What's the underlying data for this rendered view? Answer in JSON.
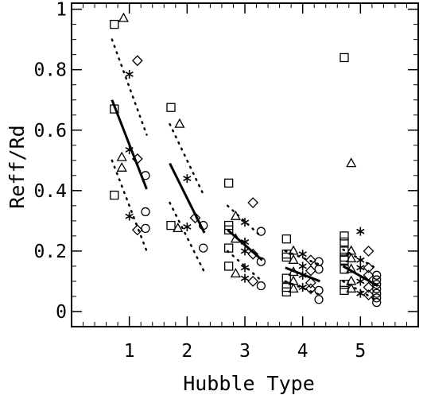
{
  "chart_data": {
    "type": "scatter",
    "title": "",
    "xlabel": "Hubble Type",
    "ylabel": "Reff/Rd",
    "xlim": [
      0,
      6
    ],
    "ylim": [
      -0.05,
      1.02
    ],
    "x_ticks": [
      1,
      2,
      3,
      4,
      5
    ],
    "y_ticks": [
      0,
      0.2,
      0.4,
      0.6,
      0.8,
      1
    ],
    "x_tick_labels": [
      "1",
      "2",
      "3",
      "4",
      "5"
    ],
    "y_tick_labels": [
      "0",
      "0.2",
      "0.4",
      "0.6",
      "0.8",
      "1"
    ],
    "grid": false,
    "legend": null,
    "marker_series": [
      {
        "marker": "square",
        "points": [
          [
            0.74,
            0.95
          ],
          [
            0.74,
            0.67
          ],
          [
            0.74,
            0.385
          ],
          [
            1.72,
            0.675
          ],
          [
            1.72,
            0.285
          ],
          [
            2.72,
            0.425
          ],
          [
            2.72,
            0.285
          ],
          [
            2.72,
            0.27
          ],
          [
            2.72,
            0.21
          ],
          [
            2.72,
            0.15
          ],
          [
            3.72,
            0.24
          ],
          [
            3.72,
            0.19
          ],
          [
            3.72,
            0.18
          ],
          [
            3.72,
            0.11
          ],
          [
            3.72,
            0.08
          ],
          [
            3.72,
            0.065
          ],
          [
            4.72,
            0.84
          ],
          [
            4.72,
            0.25
          ],
          [
            4.72,
            0.23
          ],
          [
            4.72,
            0.2
          ],
          [
            4.72,
            0.18
          ],
          [
            4.72,
            0.17
          ],
          [
            4.72,
            0.14
          ],
          [
            4.72,
            0.09
          ],
          [
            4.72,
            0.07
          ]
        ]
      },
      {
        "marker": "triangle",
        "points": [
          [
            0.9,
            0.97
          ],
          [
            0.87,
            0.51
          ],
          [
            0.87,
            0.475
          ],
          [
            1.87,
            0.62
          ],
          [
            1.84,
            0.275
          ],
          [
            2.84,
            0.315
          ],
          [
            2.84,
            0.24
          ],
          [
            2.84,
            0.125
          ],
          [
            3.84,
            0.2
          ],
          [
            3.84,
            0.17
          ],
          [
            3.84,
            0.13
          ],
          [
            3.84,
            0.1
          ],
          [
            3.84,
            0.075
          ],
          [
            4.84,
            0.49
          ],
          [
            4.84,
            0.2
          ],
          [
            4.84,
            0.175
          ],
          [
            4.84,
            0.14
          ],
          [
            4.84,
            0.1
          ],
          [
            4.84,
            0.075
          ]
        ]
      },
      {
        "marker": "asterisk",
        "points": [
          [
            1.0,
            0.785
          ],
          [
            1.0,
            0.535
          ],
          [
            1.0,
            0.315
          ],
          [
            2.0,
            0.44
          ],
          [
            2.0,
            0.28
          ],
          [
            3.0,
            0.295
          ],
          [
            3.0,
            0.23
          ],
          [
            3.0,
            0.2
          ],
          [
            3.0,
            0.145
          ],
          [
            3.0,
            0.11
          ],
          [
            4.0,
            0.19
          ],
          [
            4.0,
            0.15
          ],
          [
            4.0,
            0.12
          ],
          [
            4.0,
            0.08
          ],
          [
            5.0,
            0.265
          ],
          [
            5.0,
            0.17
          ],
          [
            5.0,
            0.145
          ],
          [
            5.0,
            0.1
          ],
          [
            5.0,
            0.06
          ]
        ]
      },
      {
        "marker": "diamond",
        "points": [
          [
            1.14,
            0.83
          ],
          [
            1.14,
            0.505
          ],
          [
            1.14,
            0.27
          ],
          [
            2.14,
            0.31
          ],
          [
            3.14,
            0.36
          ],
          [
            3.14,
            0.19
          ],
          [
            3.14,
            0.1
          ],
          [
            4.14,
            0.17
          ],
          [
            4.14,
            0.135
          ],
          [
            4.14,
            0.095
          ],
          [
            4.14,
            0.075
          ],
          [
            5.14,
            0.2
          ],
          [
            5.14,
            0.145
          ],
          [
            5.14,
            0.12
          ],
          [
            5.14,
            0.08
          ],
          [
            5.14,
            0.055
          ]
        ]
      },
      {
        "marker": "circle",
        "points": [
          [
            1.28,
            0.45
          ],
          [
            1.28,
            0.33
          ],
          [
            1.28,
            0.275
          ],
          [
            2.28,
            0.285
          ],
          [
            2.28,
            0.21
          ],
          [
            3.28,
            0.265
          ],
          [
            3.28,
            0.165
          ],
          [
            3.28,
            0.085
          ],
          [
            4.28,
            0.165
          ],
          [
            4.28,
            0.14
          ],
          [
            4.28,
            0.07
          ],
          [
            4.28,
            0.04
          ],
          [
            5.28,
            0.12
          ],
          [
            5.28,
            0.105
          ],
          [
            5.28,
            0.09
          ],
          [
            5.28,
            0.075
          ],
          [
            5.28,
            0.06
          ],
          [
            5.28,
            0.045
          ],
          [
            5.28,
            0.03
          ]
        ]
      }
    ],
    "fit_lines": [
      {
        "x": [
          0.7,
          1.3
        ],
        "y": [
          0.7,
          0.405
        ],
        "dotted_upper": [
          0.9,
          0.585
        ],
        "dotted_lower": [
          0.5,
          0.2
        ]
      },
      {
        "x": [
          1.7,
          2.3
        ],
        "y": [
          0.49,
          0.26
        ],
        "dotted_upper": [
          0.62,
          0.38
        ],
        "dotted_lower": [
          0.36,
          0.13
        ]
      },
      {
        "x": [
          2.7,
          3.3
        ],
        "y": [
          0.27,
          0.17
        ],
        "dotted_upper": [
          0.35,
          0.245
        ],
        "dotted_lower": [
          0.2,
          0.1
        ]
      },
      {
        "x": [
          3.7,
          4.3
        ],
        "y": [
          0.145,
          0.1
        ],
        "dotted_upper": [
          0.2,
          0.155
        ],
        "dotted_lower": [
          0.1,
          0.055
        ]
      },
      {
        "x": [
          4.7,
          5.3
        ],
        "y": [
          0.15,
          0.085
        ],
        "dotted_upper": [
          0.205,
          0.14
        ],
        "dotted_lower": [
          0.1,
          0.035
        ]
      }
    ]
  }
}
